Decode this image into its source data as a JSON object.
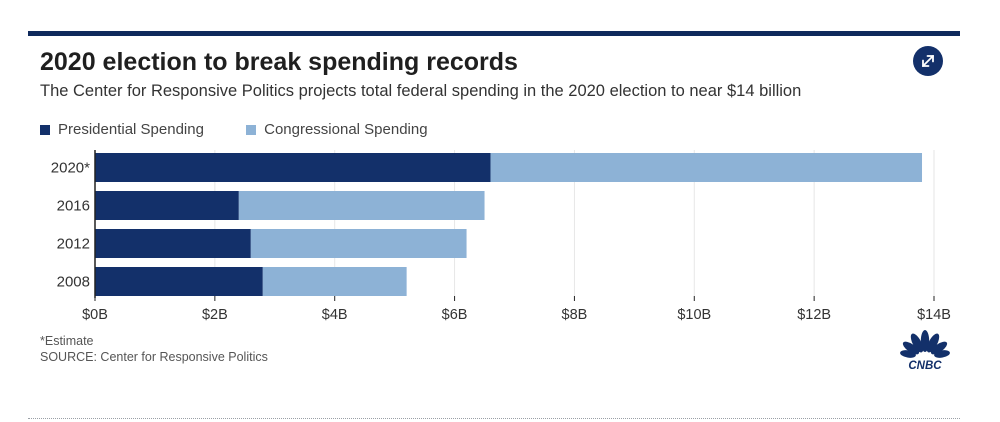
{
  "header": {
    "title": "2020 election to break spending records",
    "subtitle": "The Center for Responsive Politics projects total federal spending in the 2020 election to near $14 billion"
  },
  "legend": {
    "items": [
      {
        "label": "Presidential Spending",
        "color": "#13306a"
      },
      {
        "label": "Congressional Spending",
        "color": "#8db2d6"
      }
    ]
  },
  "chart_data": {
    "type": "bar",
    "orientation": "horizontal",
    "stacked": true,
    "categories": [
      "2020*",
      "2016",
      "2012",
      "2008"
    ],
    "series": [
      {
        "name": "Presidential Spending",
        "color": "#13306a",
        "values": [
          6.6,
          2.4,
          2.6,
          2.8
        ]
      },
      {
        "name": "Congressional Spending",
        "color": "#8db2d6",
        "values": [
          7.2,
          4.1,
          3.6,
          2.4
        ]
      }
    ],
    "xlim": [
      0,
      14
    ],
    "x_ticks": [
      0,
      2,
      4,
      6,
      8,
      10,
      12,
      14
    ],
    "x_tick_labels": [
      "$0B",
      "$2B",
      "$4B",
      "$6B",
      "$8B",
      "$10B",
      "$12B",
      "$14B"
    ],
    "grid": true,
    "legend_position": "top-left"
  },
  "footer": {
    "note": "*Estimate",
    "source": "SOURCE: Center for Responsive Politics",
    "logo_text": "CNBC"
  },
  "icons": {
    "expand": "expand-arrows-icon"
  }
}
